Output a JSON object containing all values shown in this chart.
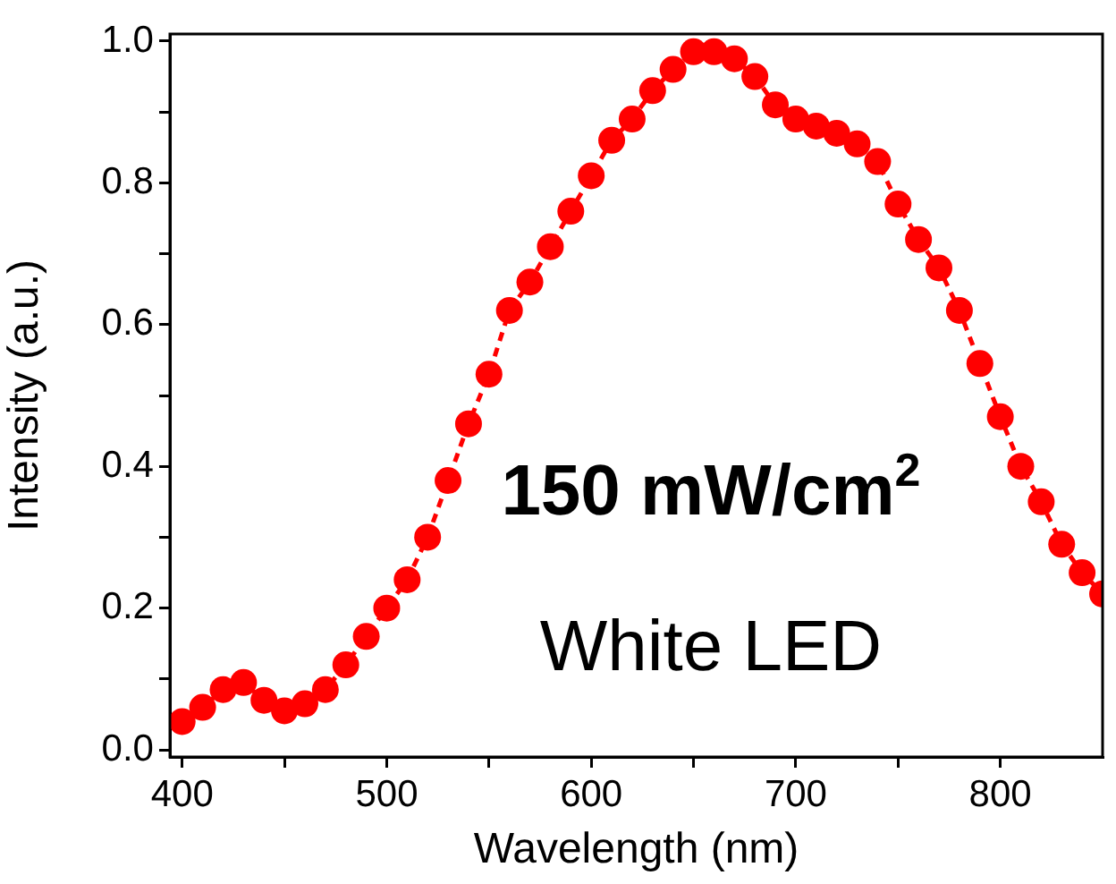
{
  "chart_data": {
    "type": "line",
    "xlabel": "Wavelength (nm)",
    "ylabel": "Intensity (a.u.)",
    "annotations": [
      "150 mW/cm$^{2}$",
      "White LED"
    ],
    "x": [
      400,
      410,
      420,
      430,
      440,
      450,
      460,
      470,
      480,
      490,
      500,
      510,
      520,
      530,
      540,
      550,
      560,
      570,
      580,
      590,
      600,
      610,
      620,
      630,
      640,
      650,
      660,
      670,
      680,
      690,
      700,
      710,
      720,
      730,
      740,
      750,
      760,
      770,
      780,
      790,
      800,
      810,
      820,
      830,
      840,
      850
    ],
    "series": [
      {
        "color": "#ff0000",
        "values": [
          0.04,
          0.06,
          0.085,
          0.095,
          0.07,
          0.055,
          0.065,
          0.085,
          0.12,
          0.16,
          0.2,
          0.24,
          0.3,
          0.38,
          0.46,
          0.53,
          0.62,
          0.66,
          0.71,
          0.76,
          0.81,
          0.86,
          0.89,
          0.93,
          0.96,
          0.985,
          0.985,
          0.975,
          0.95,
          0.91,
          0.89,
          0.88,
          0.87,
          0.855,
          0.83,
          0.77,
          0.72,
          0.68,
          0.62,
          0.545,
          0.47,
          0.4,
          0.35,
          0.29,
          0.25,
          0.22
        ]
      }
    ],
    "xlim": [
      394,
      850
    ],
    "ylim": [
      -0.01,
      1.01
    ],
    "xticks": [
      400,
      {
        "value": 450,
        "label": null
      },
      500,
      {
        "value": 550,
        "label": null
      },
      600,
      {
        "value": 650,
        "label": null
      },
      700,
      {
        "value": 750,
        "label": null
      },
      800
    ],
    "yticks": [
      {
        "value": 0,
        "label": "0.0"
      },
      {
        "value": 0.1,
        "label": null
      },
      0.2,
      {
        "value": 0.3,
        "label": null
      },
      0.4,
      {
        "value": 0.5,
        "label": null
      },
      0.6,
      {
        "value": 0.7,
        "label": null
      },
      0.8,
      {
        "value": 0.9,
        "label": null
      },
      {
        "value": 1,
        "label": "1.0"
      }
    ],
    "grid": false,
    "legend": false,
    "marker": "circle",
    "line_style": "dashed"
  }
}
